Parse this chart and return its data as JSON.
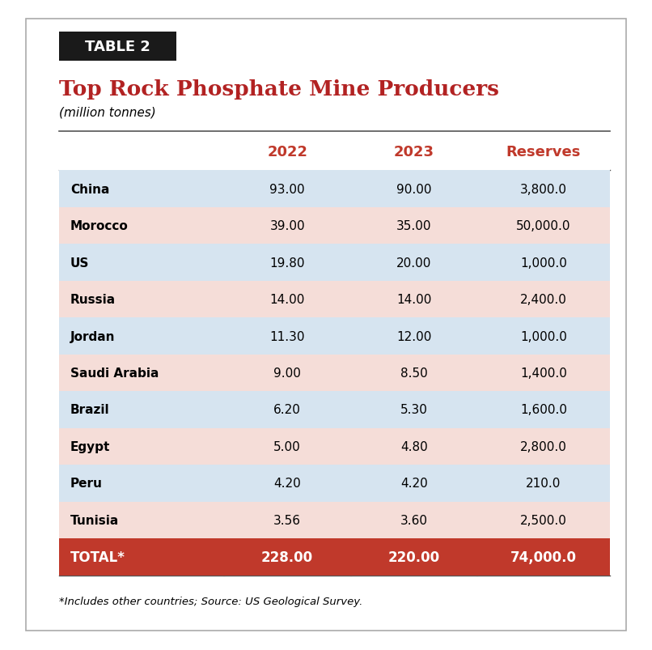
{
  "table_label": "TABLE 2",
  "title": "Top Rock Phosphate Mine Producers",
  "subtitle": "(million tonnes)",
  "columns": [
    "",
    "2022",
    "2023",
    "Reserves"
  ],
  "rows": [
    [
      "China",
      "93.00",
      "90.00",
      "3,800.0"
    ],
    [
      "Morocco",
      "39.00",
      "35.00",
      "50,000.0"
    ],
    [
      "US",
      "19.80",
      "20.00",
      "1,000.0"
    ],
    [
      "Russia",
      "14.00",
      "14.00",
      "2,400.0"
    ],
    [
      "Jordan",
      "11.30",
      "12.00",
      "1,000.0"
    ],
    [
      "Saudi Arabia",
      "9.00",
      "8.50",
      "1,400.0"
    ],
    [
      "Brazil",
      "6.20",
      "5.30",
      "1,600.0"
    ],
    [
      "Egypt",
      "5.00",
      "4.80",
      "2,800.0"
    ],
    [
      "Peru",
      "4.20",
      "4.20",
      "210.0"
    ],
    [
      "Tunisia",
      "3.56",
      "3.60",
      "2,500.0"
    ]
  ],
  "total_row": [
    "TOTAL*",
    "228.00",
    "220.00",
    "74,000.0"
  ],
  "footnote": "*Includes other countries; Source: US Geological Survey.",
  "row_colors_blue": [
    0,
    2,
    4,
    6,
    8
  ],
  "row_colors_pink": [
    1,
    3,
    5,
    7,
    9
  ],
  "color_blue_light": "#d6e4f0",
  "color_pink_light": "#f5ddd8",
  "color_red": "#b22222",
  "color_total_bg": "#c0392b",
  "color_total_text": "#ffffff",
  "color_header_text": "#c0392b",
  "color_black": "#000000",
  "color_white": "#ffffff",
  "color_bg": "#ffffff",
  "color_outer_border": "#cccccc",
  "table_label_bg": "#1a1a1a",
  "table_label_text": "#ffffff"
}
